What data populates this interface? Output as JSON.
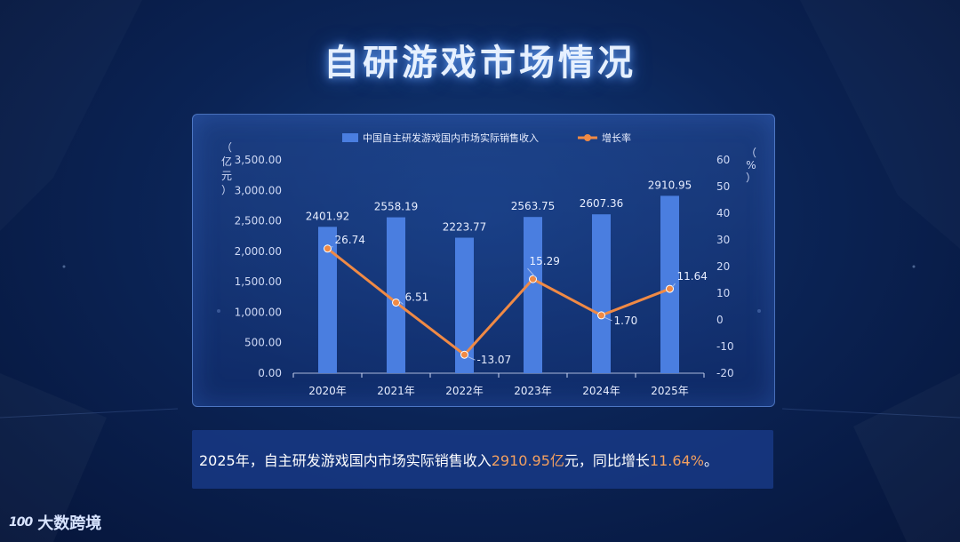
{
  "page_title": "自研游戏市场情况",
  "summary": {
    "part1": "2025年，自主研发游戏国内市场实际销售收入",
    "value": "2910.95亿",
    "part2": "元，同比增长",
    "rate": "11.64%",
    "part3": "。"
  },
  "logo": {
    "mark": "100",
    "text": "大数跨境"
  },
  "colors": {
    "bar": "#4a7ee0",
    "line": "#f08a45",
    "text": "#e8eeff",
    "axis": "#cfd9f5"
  },
  "chart_data": {
    "type": "bar",
    "categories": [
      "2020年",
      "2021年",
      "2022年",
      "2023年",
      "2024年",
      "2025年"
    ],
    "series": [
      {
        "name": "中国自主研发游戏国内市场实际销售收入",
        "type": "bar",
        "axis": "left",
        "values": [
          2401.92,
          2558.19,
          2223.77,
          2563.75,
          2607.36,
          2910.95
        ],
        "labels": [
          "2401.92",
          "2558.19",
          "2223.77",
          "2563.75",
          "2607.36",
          "2910.95"
        ]
      },
      {
        "name": "增长率",
        "type": "line",
        "axis": "right",
        "values": [
          26.74,
          6.51,
          -13.07,
          15.29,
          1.7,
          11.64
        ],
        "labels": [
          "26.74",
          "6.51",
          "-13.07",
          "15.29",
          "1.70",
          "11.64"
        ]
      }
    ],
    "y_left": {
      "label": "（亿元）",
      "min": 0,
      "max": 3500,
      "ticks": [
        "0.00",
        "500.00",
        "1,000.00",
        "1,500.00",
        "2,000.00",
        "2,500.00",
        "3,000.00",
        "3,500.00"
      ]
    },
    "y_right": {
      "label": "（%）",
      "min": -20,
      "max": 60,
      "ticks": [
        "-20",
        "-10",
        "0",
        "10",
        "20",
        "30",
        "40",
        "50",
        "60"
      ]
    },
    "legend_position": "top-center",
    "grid": false
  }
}
